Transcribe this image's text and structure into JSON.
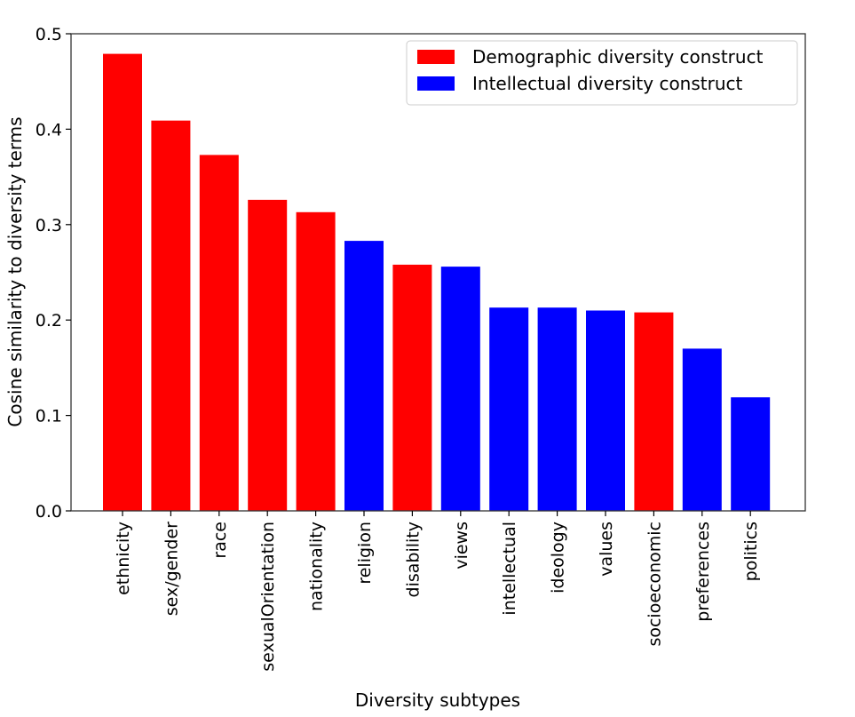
{
  "chart_data": {
    "type": "bar",
    "categories": [
      "ethnicity",
      "sex/gender",
      "race",
      "sexualOrientation",
      "nationality",
      "religion",
      "disability",
      "views",
      "intellectual",
      "ideology",
      "values",
      "socioeconomic",
      "preferences",
      "politics"
    ],
    "values": [
      0.479,
      0.409,
      0.373,
      0.326,
      0.313,
      0.283,
      0.258,
      0.256,
      0.213,
      0.213,
      0.21,
      0.208,
      0.17,
      0.119
    ],
    "groups": [
      "Demographic diversity construct",
      "Demographic diversity construct",
      "Demographic diversity construct",
      "Demographic diversity construct",
      "Demographic diversity construct",
      "Intellectual diversity construct",
      "Demographic diversity construct",
      "Intellectual diversity construct",
      "Intellectual diversity construct",
      "Intellectual diversity construct",
      "Intellectual diversity construct",
      "Demographic diversity construct",
      "Intellectual diversity construct",
      "Intellectual diversity construct"
    ],
    "legend": [
      {
        "label": "Demographic diversity construct",
        "color": "#ff0000"
      },
      {
        "label": "Intellectual diversity construct",
        "color": "#0000ff"
      }
    ],
    "legend_position": "top-right",
    "xlabel": "Diversity subtypes",
    "ylabel": "Cosine similarity to diversity terms",
    "ylim": [
      0,
      0.5
    ],
    "yticks": [
      "0.0",
      "0.1",
      "0.2",
      "0.3",
      "0.4",
      "0.5"
    ],
    "grid": false
  }
}
